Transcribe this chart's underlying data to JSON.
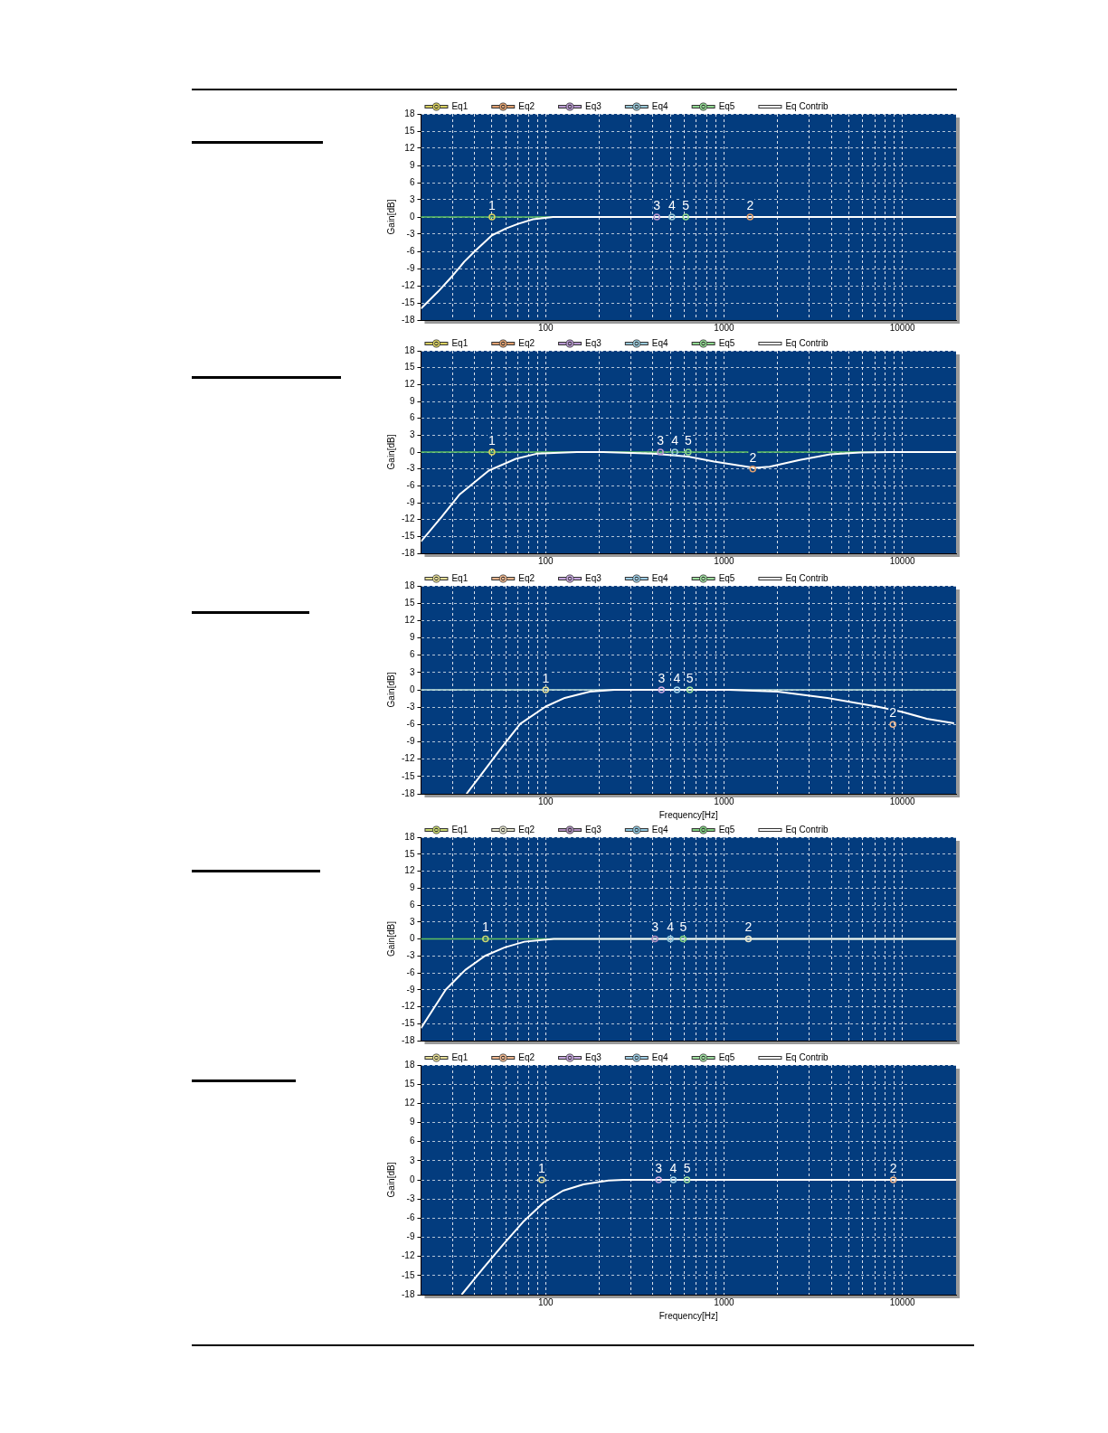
{
  "chart_data": [
    {
      "type": "line",
      "ylabel": "Gain[dB]",
      "log": "x",
      "grid": true,
      "legend": "top",
      "tick_labels": "xy",
      "xlim": [
        20,
        20000
      ],
      "xticks": [
        {
          "value": 20,
          "label": null
        },
        {
          "value": 30,
          "label": null
        },
        {
          "value": 40,
          "label": null
        },
        {
          "value": 50,
          "label": null
        },
        {
          "value": 60,
          "label": null
        },
        {
          "value": 70,
          "label": null
        },
        {
          "value": 80,
          "label": null
        },
        {
          "value": 90,
          "label": null
        },
        100,
        {
          "value": 200,
          "label": null
        },
        {
          "value": 300,
          "label": null
        },
        {
          "value": 400,
          "label": null
        },
        {
          "value": 500,
          "label": null
        },
        {
          "value": 600,
          "label": null
        },
        {
          "value": 700,
          "label": null
        },
        {
          "value": 800,
          "label": null
        },
        {
          "value": 900,
          "label": null
        },
        1000,
        {
          "value": 2000,
          "label": null
        },
        {
          "value": 3000,
          "label": null
        },
        {
          "value": 4000,
          "label": null
        },
        {
          "value": 5000,
          "label": null
        },
        {
          "value": 6000,
          "label": null
        },
        {
          "value": 7000,
          "label": null
        },
        {
          "value": 8000,
          "label": null
        },
        {
          "value": 9000,
          "label": null
        },
        10000
      ],
      "ylim": [
        -18,
        18
      ],
      "yticks": [
        -18,
        -15,
        -12,
        -9,
        -6,
        -3,
        0,
        3,
        6,
        9,
        12,
        15,
        18
      ],
      "ref_lines": [
        {
          "axis": "y",
          "value": 0,
          "color": "#60c060"
        }
      ],
      "annotations": [
        {
          "text": "1",
          "x": 50,
          "y": 0
        },
        {
          "text": "2",
          "x": 1400,
          "y": 0
        },
        {
          "text": "3",
          "x": 420,
          "y": 0
        },
        {
          "text": "4",
          "x": 510,
          "y": 0
        },
        {
          "text": "5",
          "x": 610,
          "y": 0
        }
      ],
      "series": [
        {
          "name": "Eq1",
          "type": "scatter",
          "marker": "circle",
          "color": "#d8d060",
          "x": [
            50
          ],
          "values": [
            0
          ]
        },
        {
          "name": "Eq2",
          "type": "scatter",
          "marker": "circle",
          "color": "#e0a070",
          "x": [
            1400
          ],
          "values": [
            0
          ]
        },
        {
          "name": "Eq3",
          "type": "scatter",
          "marker": "circle",
          "color": "#b898d0",
          "x": [
            420
          ],
          "values": [
            0
          ]
        },
        {
          "name": "Eq4",
          "type": "scatter",
          "marker": "circle",
          "color": "#98c8d8",
          "x": [
            510
          ],
          "values": [
            0
          ]
        },
        {
          "name": "Eq5",
          "type": "scatter",
          "marker": "circle",
          "color": "#90d890",
          "x": [
            610
          ],
          "values": [
            0
          ]
        },
        {
          "name": "Eq Contrib",
          "type": "line",
          "marker": "none",
          "color": "#ffffff",
          "x": [
            20,
            25,
            30,
            35,
            40,
            50,
            60,
            70,
            85,
            110,
            20000
          ],
          "values": [
            -16,
            -13,
            -10.3,
            -7.8,
            -6,
            -3.2,
            -2,
            -1.2,
            -0.4,
            0,
            0
          ]
        }
      ]
    },
    {
      "type": "line",
      "ylabel": "Gain[dB]",
      "log": "x",
      "grid": true,
      "legend": "top",
      "tick_labels": "xy",
      "xlim": [
        20,
        20000
      ],
      "xticks": [
        {
          "value": 20,
          "label": null
        },
        {
          "value": 30,
          "label": null
        },
        {
          "value": 40,
          "label": null
        },
        {
          "value": 50,
          "label": null
        },
        {
          "value": 60,
          "label": null
        },
        {
          "value": 70,
          "label": null
        },
        {
          "value": 80,
          "label": null
        },
        {
          "value": 90,
          "label": null
        },
        100,
        {
          "value": 200,
          "label": null
        },
        {
          "value": 300,
          "label": null
        },
        {
          "value": 400,
          "label": null
        },
        {
          "value": 500,
          "label": null
        },
        {
          "value": 600,
          "label": null
        },
        {
          "value": 700,
          "label": null
        },
        {
          "value": 800,
          "label": null
        },
        {
          "value": 900,
          "label": null
        },
        1000,
        {
          "value": 2000,
          "label": null
        },
        {
          "value": 3000,
          "label": null
        },
        {
          "value": 4000,
          "label": null
        },
        {
          "value": 5000,
          "label": null
        },
        {
          "value": 6000,
          "label": null
        },
        {
          "value": 7000,
          "label": null
        },
        {
          "value": 8000,
          "label": null
        },
        {
          "value": 9000,
          "label": null
        },
        10000
      ],
      "ylim": [
        -18,
        18
      ],
      "yticks": [
        -18,
        -15,
        -12,
        -9,
        -6,
        -3,
        0,
        3,
        6,
        9,
        12,
        15,
        18
      ],
      "ref_lines": [
        {
          "axis": "y",
          "value": 0,
          "color": "#60c060"
        }
      ],
      "annotations": [
        {
          "text": "1",
          "x": 50,
          "y": 0
        },
        {
          "text": "2",
          "x": 1450,
          "y": -3
        },
        {
          "text": "3",
          "x": 440,
          "y": 0
        },
        {
          "text": "4",
          "x": 530,
          "y": 0
        },
        {
          "text": "5",
          "x": 630,
          "y": 0
        }
      ],
      "series": [
        {
          "name": "Eq1",
          "type": "scatter",
          "marker": "circle",
          "color": "#d8d060",
          "x": [
            50
          ],
          "values": [
            0
          ]
        },
        {
          "name": "Eq2",
          "type": "scatter",
          "marker": "circle",
          "color": "#e0a070",
          "x": [
            1450
          ],
          "values": [
            -3
          ]
        },
        {
          "name": "Eq3",
          "type": "scatter",
          "marker": "circle",
          "color": "#b898d0",
          "x": [
            440
          ],
          "values": [
            0
          ]
        },
        {
          "name": "Eq4",
          "type": "scatter",
          "marker": "circle",
          "color": "#98c8d8",
          "x": [
            530
          ],
          "values": [
            0
          ]
        },
        {
          "name": "Eq5",
          "type": "scatter",
          "marker": "circle",
          "color": "#90d890",
          "x": [
            630
          ],
          "values": [
            0
          ]
        },
        {
          "name": "Eq Contrib",
          "type": "line",
          "marker": "none",
          "color": "#ffffff",
          "x": [
            20,
            26,
            33,
            48,
            68,
            89,
            150,
            210,
            400,
            630,
            880,
            1480,
            1800,
            2660,
            3940,
            5800,
            8600,
            20000
          ],
          "values": [
            -15.9,
            -11.6,
            -7.5,
            -3.3,
            -1.2,
            -0.3,
            0,
            0,
            -0.3,
            -0.8,
            -1.7,
            -2.8,
            -2.6,
            -1.4,
            -0.4,
            -0.1,
            0,
            0
          ]
        }
      ]
    },
    {
      "type": "line",
      "xlabel": "Frequency[Hz]",
      "ylabel": "Gain[dB]",
      "log": "x",
      "grid": true,
      "legend": "top",
      "tick_labels": "xy",
      "xlim": [
        20,
        20000
      ],
      "xticks": [
        {
          "value": 20,
          "label": null
        },
        {
          "value": 30,
          "label": null
        },
        {
          "value": 40,
          "label": null
        },
        {
          "value": 50,
          "label": null
        },
        {
          "value": 60,
          "label": null
        },
        {
          "value": 70,
          "label": null
        },
        {
          "value": 80,
          "label": null
        },
        {
          "value": 90,
          "label": null
        },
        100,
        {
          "value": 200,
          "label": null
        },
        {
          "value": 300,
          "label": null
        },
        {
          "value": 400,
          "label": null
        },
        {
          "value": 500,
          "label": null
        },
        {
          "value": 600,
          "label": null
        },
        {
          "value": 700,
          "label": null
        },
        {
          "value": 800,
          "label": null
        },
        {
          "value": 900,
          "label": null
        },
        1000,
        {
          "value": 2000,
          "label": null
        },
        {
          "value": 3000,
          "label": null
        },
        {
          "value": 4000,
          "label": null
        },
        {
          "value": 5000,
          "label": null
        },
        {
          "value": 6000,
          "label": null
        },
        {
          "value": 7000,
          "label": null
        },
        {
          "value": 8000,
          "label": null
        },
        {
          "value": 9000,
          "label": null
        },
        10000
      ],
      "ylim": [
        -18,
        18
      ],
      "yticks": [
        -18,
        -15,
        -12,
        -9,
        -6,
        -3,
        0,
        3,
        6,
        9,
        12,
        15,
        18
      ],
      "ref_lines": [
        {
          "axis": "y",
          "value": 0,
          "color": "#c8e8e0"
        }
      ],
      "annotations": [
        {
          "text": "1",
          "x": 100,
          "y": 0
        },
        {
          "text": "2",
          "x": 8850,
          "y": -6
        },
        {
          "text": "3",
          "x": 446,
          "y": 0
        },
        {
          "text": "4",
          "x": 545,
          "y": 0
        },
        {
          "text": "5",
          "x": 643,
          "y": 0
        }
      ],
      "series": [
        {
          "name": "Eq1",
          "type": "scatter",
          "marker": "circle",
          "color": "#e8e098",
          "x": [
            100
          ],
          "values": [
            0
          ]
        },
        {
          "name": "Eq2",
          "type": "scatter",
          "marker": "circle",
          "color": "#f0b890",
          "x": [
            8850
          ],
          "values": [
            -6
          ]
        },
        {
          "name": "Eq3",
          "type": "scatter",
          "marker": "circle",
          "color": "#c8a8e0",
          "x": [
            446
          ],
          "values": [
            0
          ]
        },
        {
          "name": "Eq4",
          "type": "scatter",
          "marker": "circle",
          "color": "#a0d0e8",
          "x": [
            545
          ],
          "values": [
            0
          ]
        },
        {
          "name": "Eq5",
          "type": "scatter",
          "marker": "circle",
          "color": "#a0e0a0",
          "x": [
            643
          ],
          "values": [
            0
          ]
        },
        {
          "name": "Eq Contrib",
          "type": "line",
          "marker": "none",
          "color": "#ffffff",
          "x": [
            36,
            43,
            56,
            72,
            100,
            128,
            177,
            243,
            1060,
            2000,
            3800,
            7200,
            9900,
            13700,
            19500
          ],
          "values": [
            -18,
            -14.9,
            -10.2,
            -5.9,
            -2.9,
            -1.4,
            -0.3,
            0,
            0,
            -0.3,
            -1.4,
            -2.9,
            -3.8,
            -5,
            -5.8
          ]
        }
      ]
    },
    {
      "type": "line",
      "ylabel": "Gain[dB]",
      "log": "x",
      "grid": true,
      "legend": "top",
      "tick_labels": "y",
      "xlim": [
        20,
        20000
      ],
      "xticks": [
        {
          "value": 20,
          "label": null
        },
        {
          "value": 30,
          "label": null
        },
        {
          "value": 40,
          "label": null
        },
        {
          "value": 50,
          "label": null
        },
        {
          "value": 60,
          "label": null
        },
        {
          "value": 70,
          "label": null
        },
        {
          "value": 80,
          "label": null
        },
        {
          "value": 90,
          "label": null
        },
        {
          "value": 100,
          "label": null
        },
        {
          "value": 200,
          "label": null
        },
        {
          "value": 300,
          "label": null
        },
        {
          "value": 400,
          "label": null
        },
        {
          "value": 500,
          "label": null
        },
        {
          "value": 600,
          "label": null
        },
        {
          "value": 700,
          "label": null
        },
        {
          "value": 800,
          "label": null
        },
        {
          "value": 900,
          "label": null
        },
        {
          "value": 1000,
          "label": null
        },
        {
          "value": 2000,
          "label": null
        },
        {
          "value": 3000,
          "label": null
        },
        {
          "value": 4000,
          "label": null
        },
        {
          "value": 5000,
          "label": null
        },
        {
          "value": 6000,
          "label": null
        },
        {
          "value": 7000,
          "label": null
        },
        {
          "value": 8000,
          "label": null
        },
        {
          "value": 9000,
          "label": null
        },
        {
          "value": 10000,
          "label": null
        }
      ],
      "ylim": [
        -18,
        18
      ],
      "yticks": [
        -18,
        -15,
        -12,
        -9,
        -6,
        -3,
        0,
        3,
        6,
        9,
        12,
        15,
        18
      ],
      "ref_lines": [
        {
          "axis": "y",
          "value": 0,
          "color": "#60c060"
        }
      ],
      "annotations": [
        {
          "text": "1",
          "x": 46,
          "y": 0
        },
        {
          "text": "2",
          "x": 1370,
          "y": 0
        },
        {
          "text": "3",
          "x": 410,
          "y": 0
        },
        {
          "text": "4",
          "x": 500,
          "y": 0
        },
        {
          "text": "5",
          "x": 590,
          "y": 0
        }
      ],
      "series": [
        {
          "name": "Eq1",
          "type": "scatter",
          "marker": "circle",
          "color": "#c8d870",
          "x": [
            46
          ],
          "values": [
            0
          ]
        },
        {
          "name": "Eq2",
          "type": "scatter",
          "marker": "circle",
          "color": "#e8e8d0",
          "x": [
            1370
          ],
          "values": [
            0
          ]
        },
        {
          "name": "Eq3",
          "type": "scatter",
          "marker": "circle",
          "color": "#b090c0",
          "x": [
            410
          ],
          "values": [
            0
          ]
        },
        {
          "name": "Eq4",
          "type": "scatter",
          "marker": "circle",
          "color": "#90c8e0",
          "x": [
            500
          ],
          "values": [
            0
          ]
        },
        {
          "name": "Eq5",
          "type": "scatter",
          "marker": "circle",
          "color": "#80d080",
          "x": [
            590
          ],
          "values": [
            0
          ]
        },
        {
          "name": "Eq Contrib",
          "type": "line",
          "marker": "none",
          "color": "#ffffff",
          "x": [
            20,
            27.5,
            35.4,
            45.7,
            59,
            76,
            111,
            20000
          ],
          "values": [
            -15.8,
            -9,
            -5.5,
            -3,
            -1.5,
            -0.5,
            0,
            0
          ]
        }
      ]
    },
    {
      "type": "line",
      "xlabel": "Frequency[Hz]",
      "ylabel": "Gain[dB]",
      "log": "x",
      "grid": true,
      "legend": "top",
      "tick_labels": "xy",
      "xlim": [
        20,
        20000
      ],
      "xticks": [
        {
          "value": 20,
          "label": null
        },
        {
          "value": 30,
          "label": null
        },
        {
          "value": 40,
          "label": null
        },
        {
          "value": 50,
          "label": null
        },
        {
          "value": 60,
          "label": null
        },
        {
          "value": 70,
          "label": null
        },
        {
          "value": 80,
          "label": null
        },
        {
          "value": 90,
          "label": null
        },
        100,
        {
          "value": 200,
          "label": null
        },
        {
          "value": 300,
          "label": null
        },
        {
          "value": 400,
          "label": null
        },
        {
          "value": 500,
          "label": null
        },
        {
          "value": 600,
          "label": null
        },
        {
          "value": 700,
          "label": null
        },
        {
          "value": 800,
          "label": null
        },
        {
          "value": 900,
          "label": null
        },
        1000,
        {
          "value": 2000,
          "label": null
        },
        {
          "value": 3000,
          "label": null
        },
        {
          "value": 4000,
          "label": null
        },
        {
          "value": 5000,
          "label": null
        },
        {
          "value": 6000,
          "label": null
        },
        {
          "value": 7000,
          "label": null
        },
        {
          "value": 8000,
          "label": null
        },
        {
          "value": 9000,
          "label": null
        },
        10000
      ],
      "ylim": [
        -18,
        18
      ],
      "yticks": [
        -18,
        -15,
        -12,
        -9,
        -6,
        -3,
        0,
        3,
        6,
        9,
        12,
        15,
        18
      ],
      "annotations": [
        {
          "text": "1",
          "x": 95,
          "y": 0
        },
        {
          "text": "2",
          "x": 8900,
          "y": 0
        },
        {
          "text": "3",
          "x": 430,
          "y": 0
        },
        {
          "text": "4",
          "x": 520,
          "y": 0
        },
        {
          "text": "5",
          "x": 620,
          "y": 0
        }
      ],
      "series": [
        {
          "name": "Eq1",
          "type": "scatter",
          "marker": "circle",
          "color": "#e8e098",
          "x": [
            95
          ],
          "values": [
            0
          ]
        },
        {
          "name": "Eq2",
          "type": "scatter",
          "marker": "circle",
          "color": "#f0b890",
          "x": [
            8900
          ],
          "values": [
            0
          ]
        },
        {
          "name": "Eq3",
          "type": "scatter",
          "marker": "circle",
          "color": "#c8a8e0",
          "x": [
            430
          ],
          "values": [
            0
          ]
        },
        {
          "name": "Eq4",
          "type": "scatter",
          "marker": "circle",
          "color": "#a0d0e8",
          "x": [
            520
          ],
          "values": [
            0
          ]
        },
        {
          "name": "Eq5",
          "type": "scatter",
          "marker": "circle",
          "color": "#a0e0a0",
          "x": [
            620
          ],
          "values": [
            0
          ]
        },
        {
          "name": "Eq Contrib",
          "type": "line",
          "marker": "none",
          "color": "#ffffff",
          "x": [
            33.8,
            44.5,
            57.6,
            74.7,
            97,
            125,
            163,
            225,
            273,
            20000
          ],
          "values": [
            -18,
            -13.9,
            -10.2,
            -6.6,
            -3.6,
            -1.7,
            -0.7,
            -0.1,
            0,
            0
          ]
        }
      ]
    }
  ]
}
